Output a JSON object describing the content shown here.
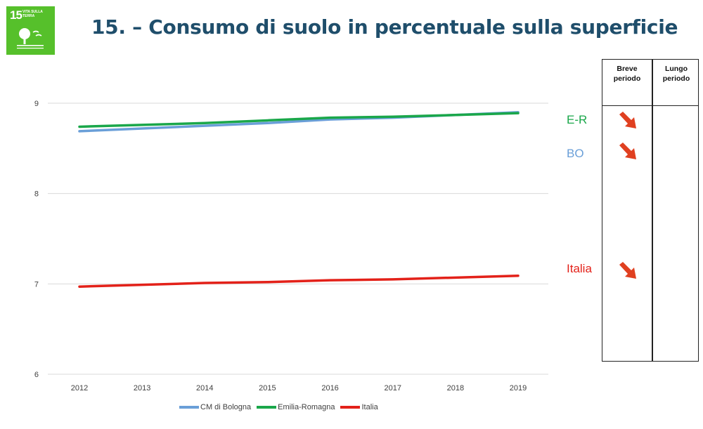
{
  "badge": {
    "number": "15",
    "label": "VITA SULLA TERRA",
    "color": "#56c02b"
  },
  "title": "15. – Consumo di suolo in percentuale sulla superficie",
  "chart_data": {
    "type": "line",
    "title": "",
    "xlabel": "",
    "ylabel": "",
    "x": [
      "2012",
      "2013",
      "2014",
      "2015",
      "2016",
      "2017",
      "2018",
      "2019"
    ],
    "ylim": [
      6,
      9
    ],
    "yticks": [
      "6",
      "7",
      "8",
      "9"
    ],
    "grid": true,
    "legend_position": "bottom",
    "series": [
      {
        "name": "CM di Bologna",
        "color": "#6a9fd8",
        "values": [
          8.69,
          8.72,
          8.75,
          8.78,
          8.82,
          8.84,
          8.87,
          8.9
        ]
      },
      {
        "name": "Emilia-Romagna",
        "color": "#1aa74a",
        "values": [
          8.74,
          8.76,
          8.78,
          8.81,
          8.84,
          8.85,
          8.87,
          8.89
        ]
      },
      {
        "name": "Italia",
        "color": "#e32119",
        "values": [
          6.97,
          6.99,
          7.01,
          7.02,
          7.04,
          7.05,
          7.07,
          7.09
        ]
      }
    ]
  },
  "regions": [
    {
      "label": "E-R",
      "color": "#1aa74a"
    },
    {
      "label": "BO",
      "color": "#6a9fd8"
    },
    {
      "label": "Italia",
      "color": "#e32119"
    }
  ],
  "table": {
    "col1": [
      "Breve",
      "periodo"
    ],
    "col2": [
      "Lungo",
      "periodo"
    ],
    "arrow_color": "#e04020"
  }
}
